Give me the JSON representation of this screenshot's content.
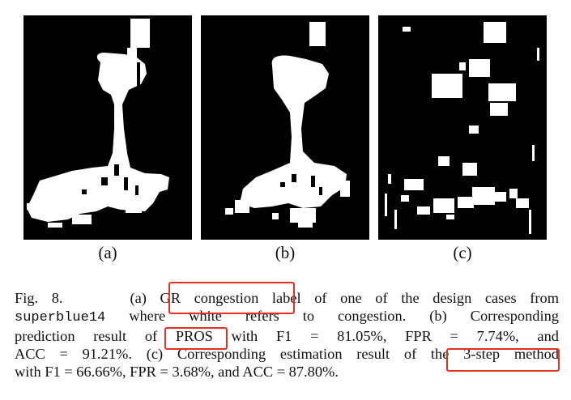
{
  "figure": {
    "panels": [
      {
        "id": "a",
        "label": "(a)"
      },
      {
        "id": "b",
        "label": "(b)"
      },
      {
        "id": "c",
        "label": "(c)"
      }
    ],
    "caption": {
      "fig_number": "Fig. 8.",
      "line1_rest": "(a) GR congestion label of one of the design cases from",
      "line2_mono": "superblue14",
      "line2_rest": " where white refers to congestion. (b) Corresponding",
      "line3": "prediction result of PROS with F1 = 81.05%, FPR = 7.74%, and",
      "line4": "ACC = 91.21%. (c) Corresponding estimation result of the 3-step method",
      "line5": "with F1 = 66.66%, FPR = 3.68%, and ACC = 87.80%."
    },
    "highlights": {
      "color": "#e53323",
      "terms": [
        "congestion label",
        "PROS",
        "3-step method"
      ]
    }
  }
}
